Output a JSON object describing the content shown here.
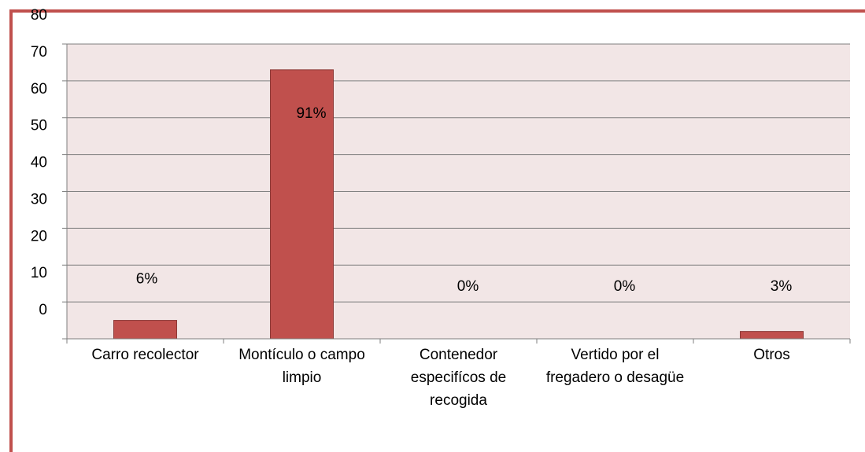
{
  "chart_data": {
    "type": "bar",
    "categories": [
      "Carro recolector",
      "Montículo o campo limpio",
      "Contenedor especifícos de recogida",
      "Vertido por el fregadero o desagüe",
      "Otros"
    ],
    "values": [
      5,
      73,
      0,
      0,
      2
    ],
    "value_labels": [
      "6%",
      "91%",
      "0%",
      "0%",
      "3%"
    ],
    "color": "#c0504d",
    "ylim": [
      0,
      80
    ],
    "yticks": [
      0,
      10,
      20,
      30,
      40,
      50,
      60,
      70,
      80
    ],
    "grid": true
  }
}
